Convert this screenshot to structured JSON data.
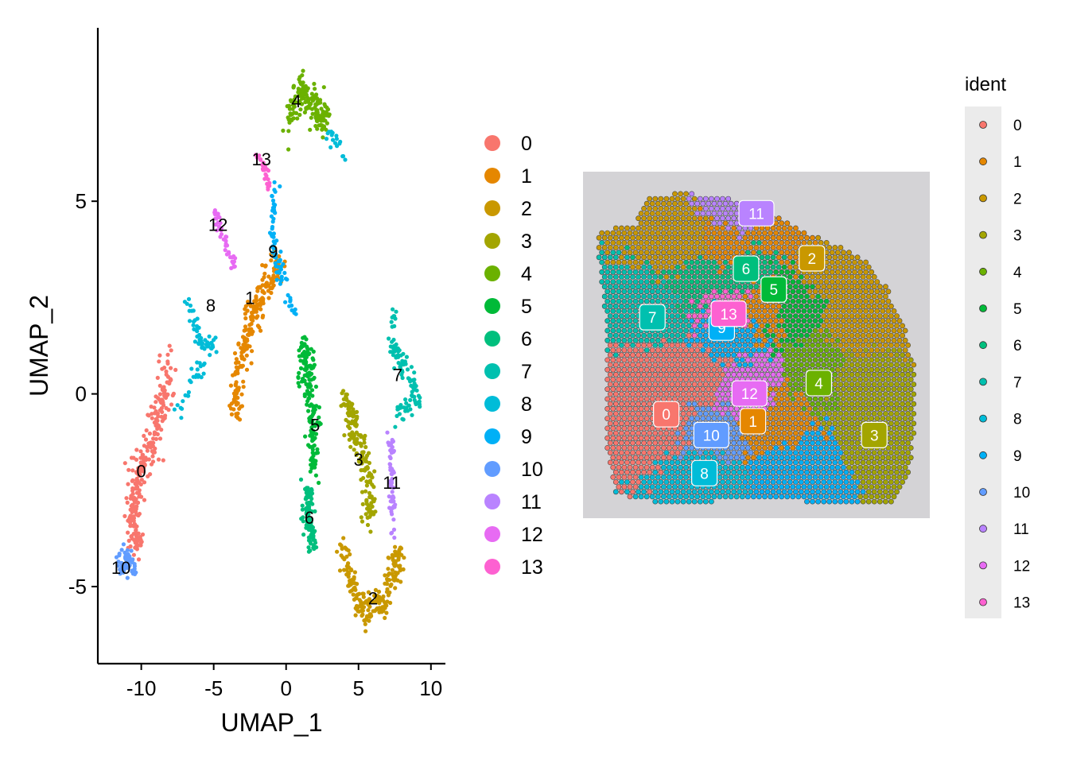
{
  "chart_data": [
    {
      "type": "scatter",
      "xlabel": "UMAP_1",
      "ylabel": "UMAP_2",
      "xlim": [
        -13,
        11
      ],
      "ylim": [
        -7,
        9.5
      ],
      "x_ticks": [
        -10,
        -5,
        0,
        5,
        10
      ],
      "x_tick_labels": [
        "-10",
        "-5",
        "0",
        "5",
        "10"
      ],
      "y_ticks": [
        -5,
        0,
        5
      ],
      "y_tick_labels": [
        "-5",
        "0",
        "5"
      ],
      "grid": false,
      "legend_position": "right",
      "legend_labels": [
        "0",
        "1",
        "2",
        "3",
        "4",
        "5",
        "6",
        "7",
        "8",
        "9",
        "10",
        "11",
        "12",
        "13"
      ],
      "cluster_labels": [
        {
          "label": "0",
          "x": -10,
          "y": -2
        },
        {
          "label": "1",
          "x": -2.5,
          "y": 2.5
        },
        {
          "label": "2",
          "x": 6,
          "y": -5.3
        },
        {
          "label": "3",
          "x": 5,
          "y": -1.7
        },
        {
          "label": "4",
          "x": 0.7,
          "y": 7.6
        },
        {
          "label": "5",
          "x": 2,
          "y": -0.8
        },
        {
          "label": "6",
          "x": 1.6,
          "y": -3.2
        },
        {
          "label": "7",
          "x": 7.7,
          "y": 0.5
        },
        {
          "label": "8",
          "x": -5.2,
          "y": 2.3
        },
        {
          "label": "9",
          "x": -0.9,
          "y": 3.7
        },
        {
          "label": "10",
          "x": -11.4,
          "y": -4.5
        },
        {
          "label": "11",
          "x": 7.3,
          "y": -2.3
        },
        {
          "label": "12",
          "x": -4.7,
          "y": 4.4
        },
        {
          "label": "13",
          "x": -1.7,
          "y": 6.1
        }
      ],
      "series": [
        {
          "name": "0",
          "color": "#F8766D",
          "path": [
            [
              -8.2,
              0.8
            ],
            [
              -8.6,
              -0.3
            ],
            [
              -9.4,
              -1.5
            ],
            [
              -10.3,
              -2.2
            ],
            [
              -10.6,
              -3.2
            ],
            [
              -10.2,
              -4.1
            ]
          ],
          "spread": 0.45,
          "n": 260
        },
        {
          "name": "1",
          "color": "#E58700",
          "path": [
            [
              -3.5,
              -0.6
            ],
            [
              -3.2,
              0.8
            ],
            [
              -2.3,
              2.1
            ],
            [
              -1.3,
              2.9
            ],
            [
              -0.5,
              3.4
            ]
          ],
          "spread": 0.4,
          "n": 220
        },
        {
          "name": "2",
          "color": "#C99800",
          "path": [
            [
              3.8,
              -4.0
            ],
            [
              5.2,
              -5.6
            ],
            [
              6.8,
              -5.4
            ],
            [
              7.8,
              -4.0
            ]
          ],
          "spread": 0.35,
          "n": 200
        },
        {
          "name": "3",
          "color": "#A3A500",
          "path": [
            [
              4.0,
              0.0
            ],
            [
              4.8,
              -1.2
            ],
            [
              5.8,
              -2.2
            ],
            [
              5.8,
              -3.2
            ]
          ],
          "spread": 0.4,
          "n": 160
        },
        {
          "name": "4",
          "color": "#6BB100",
          "path": [
            [
              0.3,
              7.1
            ],
            [
              1.0,
              7.9
            ],
            [
              1.8,
              7.5
            ],
            [
              2.8,
              7.1
            ]
          ],
          "spread": 0.35,
          "n": 160
        },
        {
          "name": "5",
          "color": "#00BA38",
          "path": [
            [
              1.2,
              1.3
            ],
            [
              1.6,
              0.0
            ],
            [
              2.0,
              -1.0
            ],
            [
              1.8,
              -2.0
            ]
          ],
          "spread": 0.4,
          "n": 160
        },
        {
          "name": "6",
          "color": "#00BF7D",
          "path": [
            [
              1.5,
              -2.5
            ],
            [
              1.5,
              -3.5
            ],
            [
              1.8,
              -3.9
            ]
          ],
          "spread": 0.3,
          "n": 100
        },
        {
          "name": "7",
          "color": "#00C0AF",
          "path": [
            [
              7.3,
              2.1
            ],
            [
              7.5,
              1.0
            ],
            [
              8.5,
              0.6
            ],
            [
              9.2,
              -0.2
            ],
            [
              7.5,
              -0.5
            ]
          ],
          "spread": 0.25,
          "n": 100
        },
        {
          "name": "8",
          "color": "#00BCD8",
          "path": [
            [
              -6.8,
              2.5
            ],
            [
              -6.0,
              1.4
            ],
            [
              -5.0,
              1.3
            ],
            [
              -6.5,
              0.4
            ],
            [
              -7.5,
              -0.5
            ],
            [
              3.0,
              6.8
            ],
            [
              4.2,
              6.2
            ]
          ],
          "spread": 0.2,
          "n": 90
        },
        {
          "name": "9",
          "color": "#00B0F6",
          "path": [
            [
              -0.8,
              5.5
            ],
            [
              -0.9,
              4.2
            ],
            [
              -0.4,
              3.2
            ],
            [
              0.5,
              2.2
            ]
          ],
          "spread": 0.25,
          "n": 70
        },
        {
          "name": "10",
          "color": "#619CFF",
          "path": [
            [
              -11.5,
              -4.5
            ],
            [
              -11.0,
              -4.3
            ],
            [
              -10.5,
              -4.4
            ]
          ],
          "spread": 0.3,
          "n": 60
        },
        {
          "name": "11",
          "color": "#B983FF",
          "path": [
            [
              7.2,
              -1.0
            ],
            [
              7.3,
              -2.3
            ],
            [
              7.4,
              -3.6
            ]
          ],
          "spread": 0.15,
          "n": 60
        },
        {
          "name": "12",
          "color": "#E76BF3",
          "path": [
            [
              -4.9,
              4.7
            ],
            [
              -4.2,
              3.9
            ],
            [
              -3.5,
              3.2
            ]
          ],
          "spread": 0.15,
          "n": 40
        },
        {
          "name": "13",
          "color": "#FD61D1",
          "path": [
            [
              -2.0,
              6.2
            ],
            [
              -1.5,
              5.8
            ],
            [
              -1.2,
              5.4
            ]
          ],
          "spread": 0.12,
          "n": 25
        }
      ]
    },
    {
      "type": "scatter",
      "title": "",
      "legend_title": "ident",
      "legend_position": "right",
      "legend_labels": [
        "0",
        "1",
        "2",
        "3",
        "4",
        "5",
        "6",
        "7",
        "8",
        "9",
        "10",
        "11",
        "12",
        "13"
      ],
      "cluster_labels": [
        {
          "label": "0",
          "x": 0.24,
          "y": 0.7
        },
        {
          "label": "1",
          "x": 0.49,
          "y": 0.72
        },
        {
          "label": "2",
          "x": 0.66,
          "y": 0.25
        },
        {
          "label": "3",
          "x": 0.84,
          "y": 0.76
        },
        {
          "label": "4",
          "x": 0.68,
          "y": 0.61
        },
        {
          "label": "5",
          "x": 0.55,
          "y": 0.34
        },
        {
          "label": "6",
          "x": 0.47,
          "y": 0.28
        },
        {
          "label": "7",
          "x": 0.2,
          "y": 0.42
        },
        {
          "label": "8",
          "x": 0.35,
          "y": 0.87
        },
        {
          "label": "9",
          "x": 0.4,
          "y": 0.45
        },
        {
          "label": "10",
          "x": 0.37,
          "y": 0.76
        },
        {
          "label": "11",
          "x": 0.5,
          "y": 0.12
        },
        {
          "label": "12",
          "x": 0.48,
          "y": 0.64
        },
        {
          "label": "13",
          "x": 0.42,
          "y": 0.41
        }
      ]
    }
  ],
  "colors": {
    "0": "#F8766D",
    "1": "#E58700",
    "2": "#C99800",
    "3": "#A3A500",
    "4": "#6BB100",
    "5": "#00BA38",
    "6": "#00BF7D",
    "7": "#00C0AF",
    "8": "#00BCD8",
    "9": "#00B0F6",
    "10": "#619CFF",
    "11": "#B983FF",
    "12": "#E76BF3",
    "13": "#FD61D1",
    "tissue_background": "#D4D3D6"
  }
}
